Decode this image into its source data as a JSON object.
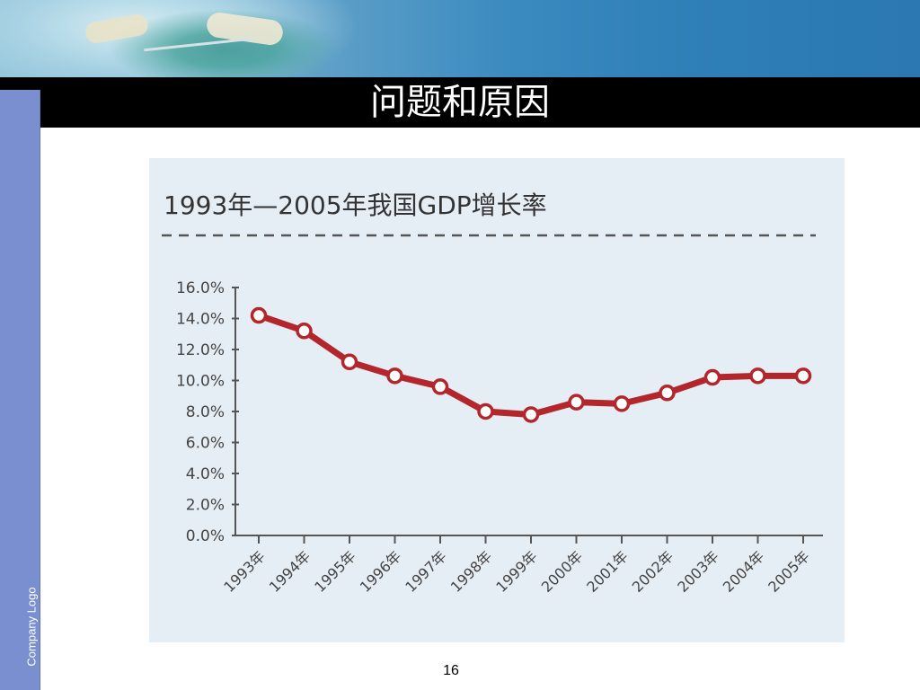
{
  "slide": {
    "title": "问题和原因",
    "company_logo": "Company Logo",
    "page_number": "16"
  },
  "colors": {
    "line": "#b3262b",
    "chart_background": "#e6eef5",
    "title_bar": "#000000",
    "left_bar": "#7a8fcf"
  },
  "chart_data": {
    "type": "line",
    "title": "1993年—2005年我国GDP增长率",
    "x": [
      "1993年",
      "1994年",
      "1995年",
      "1996年",
      "1997年",
      "1998年",
      "1999年",
      "2000年",
      "2001年",
      "2002年",
      "2003年",
      "2004年",
      "2005年"
    ],
    "series": [
      {
        "values": [
          14.2,
          13.2,
          11.2,
          10.3,
          9.6,
          8.0,
          7.8,
          8.6,
          8.5,
          9.2,
          10.2,
          10.3,
          10.3
        ]
      }
    ],
    "yticks": [
      "0.0%",
      "2.0%",
      "4.0%",
      "6.0%",
      "8.0%",
      "10.0%",
      "12.0%",
      "14.0%",
      "16.0%"
    ],
    "ylim": [
      0,
      16
    ],
    "grid": false,
    "xlabel": "",
    "ylabel": ""
  }
}
